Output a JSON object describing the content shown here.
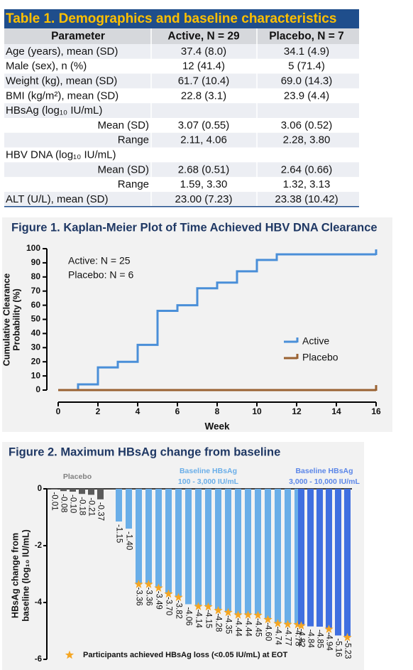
{
  "table": {
    "title": "Table 1. Demographics and baseline characteristics",
    "header": [
      "Parameter",
      "Active, N = 29",
      "Placebo, N = 7"
    ],
    "rows": [
      [
        "Age (years), mean (SD)",
        "37.4 (8.0)",
        "34.1 (4.9)"
      ],
      [
        "Male (sex), n (%)",
        "12 (41.4)",
        "5 (71.4)"
      ],
      [
        "Weight (kg), mean (SD)",
        "61.7 (10.4)",
        "69.0 (14.3)"
      ],
      [
        "BMI (kg/m²), mean (SD)",
        "22.8 (3.1)",
        "23.9 (4.4)"
      ],
      {
        "label": "HBsAg (log₁₀ IU/mL)",
        "rows": [
          [
            "Mean (SD)",
            "3.07 (0.55)",
            "3.06 (0.52)"
          ],
          [
            "Range",
            "2.11, 4.06",
            "2.28, 3.80"
          ]
        ]
      },
      {
        "label": "HBV DNA (log₁₀ IU/mL)",
        "rows": [
          [
            "Mean (SD)",
            "2.68 (0.51)",
            "2.64 (0.66)"
          ],
          [
            "Range",
            "1.59, 3.30",
            "1.32, 3.13"
          ]
        ]
      },
      [
        "ALT (U/L), mean (SD)",
        "23.00 (7.23)",
        "23.38 (10.42)"
      ]
    ]
  },
  "chart_data": [
    {
      "type": "line",
      "step": true,
      "title": "Figure 1. Kaplan-Meier Plot of Time Achieved HBV DNA Clearance",
      "xlabel": "Week",
      "ylabel": [
        "Cumulative Clearance",
        "Probability (%)"
      ],
      "annotations": [
        "Active: N = 25",
        "Placebo: N = 6"
      ],
      "xlim": [
        0,
        16
      ],
      "xticks": [
        0,
        2,
        4,
        6,
        8,
        10,
        12,
        14,
        16
      ],
      "ylim": [
        0,
        100
      ],
      "yticks": [
        0,
        10,
        20,
        30,
        40,
        50,
        60,
        70,
        80,
        90,
        100
      ],
      "legend": "right",
      "series": [
        {
          "name": "Active",
          "color": "#4a8fd8",
          "x": [
            0,
            1,
            2,
            3,
            4,
            5,
            6,
            7,
            8,
            9,
            10,
            11,
            16
          ],
          "values": [
            0,
            4,
            16,
            20,
            32,
            56,
            60,
            72,
            76,
            84,
            92,
            96,
            96
          ]
        },
        {
          "name": "Placebo",
          "color": "#9a6232",
          "x": [
            0,
            16
          ],
          "values": [
            0,
            0
          ]
        }
      ]
    },
    {
      "type": "bar",
      "title": "Figure 2. Maximum HBsAg change from baseline",
      "ylabel": [
        "HBsAg change from",
        "baseline (log₁₀ IU/mL)"
      ],
      "ylim": [
        -6,
        0
      ],
      "yticks": [
        0,
        -2,
        -4,
        -6
      ],
      "marker_label": "Participants achieved HBsAg loss (<0.05 IU/mL) at EOT",
      "marker_color": "#f5a623",
      "series": [
        {
          "name": [
            "Placebo"
          ],
          "color": "#5a5a5a",
          "label_color": "#808080",
          "values": [
            -0.01,
            -0.08,
            -0.1,
            -0.18,
            -0.21,
            -0.37
          ],
          "value_labels": [
            "-0.01",
            "-0.08",
            "-0.10",
            "-0.18",
            "-0.21",
            "-0.37"
          ],
          "hbsag_loss": [
            false,
            false,
            false,
            false,
            false,
            false
          ]
        },
        {
          "name": [
            "Baseline HBsAg",
            "100 - 3,000 IU/mL"
          ],
          "color": "#6aaee8",
          "label_color": "#6aaee8",
          "values": [
            -1.15,
            -1.4,
            -3.36,
            -3.36,
            -3.49,
            -3.7,
            -3.82,
            -4.06,
            -4.14,
            -4.15,
            -4.28,
            -4.35,
            -4.44,
            -4.44,
            -4.45,
            -4.6,
            -4.74,
            -4.77,
            -4.78
          ],
          "value_labels": [
            "-1.15",
            "-1.40",
            "-3.36",
            "-3.36",
            "-3.49",
            "-3.70",
            "-3.82",
            "-4.06",
            "-4.14",
            "-4.15",
            "-4.28",
            "-4.35",
            "-4.44",
            "-4.44",
            "-4.45",
            "-4.60",
            "-4.74",
            "-4.77",
            "-4.78"
          ],
          "hbsag_loss": [
            false,
            false,
            true,
            true,
            true,
            true,
            true,
            false,
            true,
            true,
            true,
            true,
            true,
            true,
            true,
            true,
            true,
            true,
            true
          ]
        },
        {
          "name": [
            "Baseline HBsAg",
            "3,000 - 10,000 IU/mL"
          ],
          "color": "#3f6fe0",
          "label_color": "#5b86e8",
          "values": [
            -4.82,
            -4.84,
            -4.85,
            -4.94,
            -5.16,
            -5.23
          ],
          "value_labels": [
            "-4.82",
            "-4.84",
            "-4.85",
            "-4.94",
            "-5.16",
            "-5.23"
          ],
          "hbsag_loss": [
            true,
            false,
            false,
            true,
            false,
            true
          ]
        }
      ]
    }
  ]
}
